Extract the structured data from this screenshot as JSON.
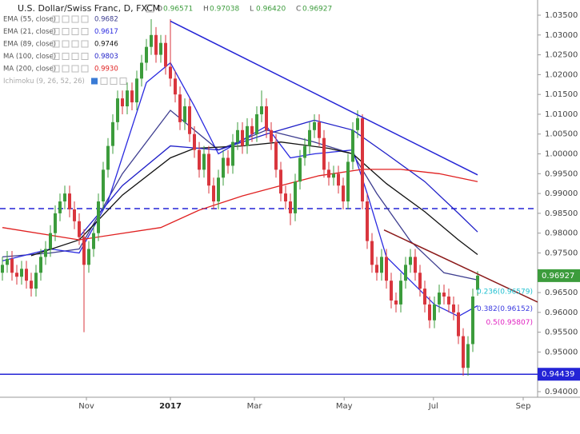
{
  "chart_data": {
    "type": "candlestick",
    "title": "U.S. Dollar/Swiss Franc, D, FXCM",
    "ohlc_text": [
      {
        "key": "O",
        "text": "0.96571"
      },
      {
        "key": "H",
        "text": "0.97038"
      },
      {
        "key": "L",
        "text": "0.96420"
      },
      {
        "key": "C",
        "text": "0.96927"
      }
    ],
    "up_color": "#3c9c3c",
    "down_color": "#d9363e",
    "xlim": [
      -0.5,
      111.5
    ],
    "xticks": [
      {
        "value": 17.5,
        "label": "Nov"
      },
      {
        "value": 35,
        "label": "2017"
      },
      {
        "value": 52.5,
        "label": "Mar"
      },
      {
        "value": 71.2,
        "label": "May"
      },
      {
        "value": 89.8,
        "label": "Jul"
      },
      {
        "value": 108.5,
        "label": "Sep"
      }
    ],
    "ylim": [
      0.94,
      1.035
    ],
    "yticks": [
      {
        "value": 1.035,
        "label": "1.03500"
      },
      {
        "value": 1.03,
        "label": "1.03000"
      },
      {
        "value": 1.025,
        "label": "1.02500"
      },
      {
        "value": 1.02,
        "label": "1.02000"
      },
      {
        "value": 1.015,
        "label": "1.01500"
      },
      {
        "value": 1.01,
        "label": "1.01000"
      },
      {
        "value": 1.005,
        "label": "1.00500"
      },
      {
        "value": 1.0,
        "label": "1.00000"
      },
      {
        "value": 0.995,
        "label": "0.99500"
      },
      {
        "value": 0.99,
        "label": "0.99000"
      },
      {
        "value": 0.985,
        "label": "0.98500"
      },
      {
        "value": 0.98,
        "label": "0.98000"
      },
      {
        "value": 0.975,
        "label": "0.97500"
      },
      {
        "value": 0.965,
        "label": "0.96500"
      },
      {
        "value": 0.96,
        "label": "0.96000"
      },
      {
        "value": 0.955,
        "label": "0.95500"
      },
      {
        "value": 0.95,
        "label": "0.95000"
      },
      {
        "value": 0.94,
        "label": "0.94000"
      }
    ],
    "x": [
      0,
      1,
      2,
      3,
      4,
      5,
      6,
      7,
      8,
      9,
      10,
      11,
      12,
      13,
      14,
      15,
      16,
      17,
      18,
      19,
      20,
      21,
      22,
      23,
      24,
      25,
      26,
      27,
      28,
      29,
      30,
      31,
      32,
      33,
      34,
      35,
      36,
      37,
      38,
      39,
      40,
      41,
      42,
      43,
      44,
      45,
      46,
      47,
      48,
      49,
      50,
      51,
      52,
      53,
      54,
      55,
      56,
      57,
      58,
      59,
      60,
      61,
      62,
      63,
      64,
      65,
      66,
      67,
      68,
      69,
      70,
      71,
      72,
      73,
      74,
      75,
      76,
      77,
      78,
      79,
      80,
      81,
      82,
      83,
      84,
      85,
      86,
      87,
      88,
      89,
      90,
      91,
      92,
      93,
      94,
      95,
      96,
      97,
      98,
      99
    ],
    "open": [
      0.97,
      0.972,
      0.9735,
      0.97,
      0.969,
      0.971,
      0.968,
      0.966,
      0.97,
      0.974,
      0.976,
      0.98,
      0.985,
      0.988,
      0.99,
      0.986,
      0.983,
      0.979,
      0.972,
      0.976,
      0.98,
      0.988,
      0.996,
      1.002,
      1.008,
      1.014,
      1.012,
      1.016,
      1.013,
      1.019,
      1.023,
      1.027,
      1.03,
      1.025,
      1.028,
      1.022,
      1.019,
      1.015,
      1.008,
      1.012,
      1.005,
      1.001,
      0.996,
      1.0,
      0.992,
      0.988,
      0.994,
      0.999,
      0.997,
      1.003,
      1.006,
      1.002,
      1.007,
      1.005,
      1.01,
      1.012,
      1.006,
      1.003,
      0.996,
      0.99,
      0.988,
      0.985,
      0.993,
      0.999,
      1.002,
      1.006,
      1.008,
      1.004,
      0.996,
      0.994,
      0.995,
      0.992,
      0.988,
      0.998,
      1.006,
      1.009,
      0.988,
      0.978,
      0.972,
      0.97,
      0.974,
      0.968,
      0.963,
      0.962,
      0.968,
      0.972,
      0.974,
      0.97,
      0.966,
      0.962,
      0.958,
      0.962,
      0.965,
      0.964,
      0.962,
      0.96,
      0.954,
      0.946,
      0.952,
      0.96571
    ],
    "high": [
      0.974,
      0.9755,
      0.9755,
      0.972,
      0.973,
      0.973,
      0.97,
      0.972,
      0.976,
      0.978,
      0.982,
      0.987,
      0.99,
      0.992,
      0.992,
      0.988,
      0.985,
      0.981,
      0.978,
      0.982,
      0.99,
      0.998,
      1.004,
      1.01,
      1.016,
      1.016,
      1.018,
      1.018,
      1.021,
      1.025,
      1.029,
      1.034,
      1.032,
      1.03,
      1.03,
      1.034,
      1.021,
      1.017,
      1.014,
      1.014,
      1.007,
      1.003,
      1.002,
      1.002,
      0.994,
      0.996,
      1.001,
      1.001,
      1.005,
      1.008,
      1.008,
      1.009,
      1.009,
      1.012,
      1.016,
      1.014,
      1.008,
      1.005,
      0.998,
      0.992,
      0.99,
      0.995,
      1.001,
      1.004,
      1.008,
      1.01,
      1.01,
      1.006,
      0.998,
      0.997,
      0.997,
      0.994,
      1.0,
      1.008,
      1.011,
      1.01,
      0.99,
      0.98,
      0.974,
      0.976,
      0.976,
      0.97,
      0.965,
      0.97,
      0.974,
      0.976,
      0.976,
      0.972,
      0.968,
      0.964,
      0.964,
      0.967,
      0.967,
      0.966,
      0.964,
      0.962,
      0.956,
      0.954,
      0.966,
      0.97038
    ],
    "low": [
      0.968,
      0.97,
      0.968,
      0.967,
      0.967,
      0.966,
      0.964,
      0.964,
      0.968,
      0.972,
      0.974,
      0.978,
      0.983,
      0.986,
      0.984,
      0.981,
      0.977,
      0.955,
      0.97,
      0.974,
      0.978,
      0.986,
      0.994,
      1.0,
      1.006,
      1.01,
      1.01,
      1.011,
      1.011,
      1.017,
      1.021,
      1.025,
      1.023,
      1.023,
      1.02,
      1.017,
      1.013,
      1.006,
      1.006,
      1.003,
      0.999,
      0.994,
      0.994,
      0.99,
      0.986,
      0.986,
      0.992,
      0.995,
      0.995,
      1.001,
      1.0,
      1.0,
      1.003,
      1.003,
      1.008,
      1.004,
      1.001,
      0.994,
      0.988,
      0.986,
      0.982,
      0.983,
      0.991,
      0.997,
      1.0,
      1.004,
      1.002,
      0.994,
      0.992,
      0.992,
      0.99,
      0.986,
      0.986,
      0.996,
      1.004,
      0.986,
      0.976,
      0.97,
      0.968,
      0.968,
      0.966,
      0.961,
      0.96,
      0.96,
      0.966,
      0.97,
      0.968,
      0.964,
      0.96,
      0.956,
      0.956,
      0.96,
      0.962,
      0.96,
      0.958,
      0.952,
      0.944,
      0.944,
      0.95,
      0.9642
    ],
    "close": [
      0.972,
      0.9735,
      0.97,
      0.969,
      0.971,
      0.968,
      0.966,
      0.97,
      0.974,
      0.976,
      0.98,
      0.985,
      0.988,
      0.99,
      0.986,
      0.983,
      0.979,
      0.972,
      0.976,
      0.98,
      0.988,
      0.996,
      1.002,
      1.008,
      1.014,
      1.012,
      1.016,
      1.013,
      1.019,
      1.023,
      1.027,
      1.03,
      1.025,
      1.028,
      1.022,
      1.019,
      1.015,
      1.008,
      1.012,
      1.005,
      1.001,
      0.996,
      1.0,
      0.992,
      0.988,
      0.994,
      0.999,
      0.997,
      1.003,
      1.006,
      1.002,
      1.007,
      1.005,
      1.01,
      1.012,
      1.006,
      1.003,
      0.996,
      0.99,
      0.988,
      0.985,
      0.993,
      0.999,
      1.002,
      1.006,
      1.008,
      1.004,
      0.996,
      0.994,
      0.995,
      0.992,
      0.988,
      0.998,
      1.006,
      1.009,
      0.988,
      0.978,
      0.972,
      0.97,
      0.974,
      0.968,
      0.963,
      0.962,
      0.968,
      0.972,
      0.974,
      0.97,
      0.966,
      0.962,
      0.958,
      0.962,
      0.965,
      0.964,
      0.962,
      0.96,
      0.954,
      0.946,
      0.952,
      0.964,
      0.96927
    ],
    "indicators": [
      {
        "name": "EMA (55, close)",
        "legend_value": "0.9682",
        "color": "#3d3d8f",
        "x": [
          0,
          10,
          16,
          25,
          35,
          45,
          55,
          65,
          73,
          78,
          85,
          92,
          99
        ],
        "values": [
          0.974,
          0.975,
          0.976,
          0.995,
          1.011,
          1.001,
          1.006,
          1.003,
          1.0,
          0.99,
          0.978,
          0.97,
          0.9682
        ]
      },
      {
        "name": "EMA (21, close)",
        "legend_value": "0.9617",
        "color": "#2a2ae0",
        "x": [
          0,
          10,
          16,
          22,
          30,
          35,
          40,
          45,
          55,
          60,
          65,
          73,
          76,
          80,
          85,
          90,
          95,
          99
        ],
        "values": [
          0.973,
          0.976,
          0.975,
          0.988,
          1.018,
          1.023,
          1.012,
          1.0,
          1.007,
          0.999,
          1.0,
          1.001,
          0.99,
          0.974,
          0.968,
          0.962,
          0.959,
          0.9617
        ]
      },
      {
        "name": "EMA (89, close)",
        "legend_value": "0.9746",
        "color": "#111111",
        "x": [
          6,
          16,
          25,
          35,
          40,
          50,
          58,
          68,
          73,
          80,
          88,
          95,
          99
        ],
        "values": [
          0.9743,
          0.9783,
          0.9896,
          0.999,
          1.0014,
          1.002,
          1.003,
          1.0014,
          1.0,
          0.9925,
          0.9854,
          0.9783,
          0.9746
        ]
      },
      {
        "name": "MA (100, close)",
        "legend_value": "0.9803",
        "color": "#1f1fc8",
        "x": [
          16,
          25,
          35,
          45,
          55,
          65,
          73,
          80,
          88,
          95,
          99
        ],
        "values": [
          0.979,
          0.992,
          1.002,
          1.001,
          1.005,
          1.0085,
          1.006,
          1.0,
          0.993,
          0.985,
          0.9803
        ]
      },
      {
        "name": "MA (200, close)",
        "legend_value": "0.9930",
        "color": "#e02020",
        "x": [
          0,
          16,
          33,
          41,
          50,
          58,
          66,
          75,
          83,
          91,
          99
        ],
        "values": [
          0.9814,
          0.9783,
          0.9814,
          0.9858,
          0.9894,
          0.992,
          0.9945,
          0.9961,
          0.9961,
          0.995,
          0.993
        ]
      }
    ],
    "extra_indicator": "Ichimoku (9, 26, 52, 26)",
    "trendlines": [
      {
        "color": "#2424d6",
        "x": [
          35,
          99
        ],
        "values": [
          1.0335,
          0.9947
        ]
      },
      {
        "color": "#8b1a1a",
        "x": [
          79.5,
          111.5
        ],
        "values": [
          0.9808,
          0.9626
        ]
      }
    ],
    "hlines": [
      {
        "value": 0.9862,
        "color": "#2424d6",
        "dashed": true
      },
      {
        "value": 0.94439,
        "color": "#2424d6",
        "dashed": false
      }
    ],
    "price_labels": [
      {
        "value": 0.96927,
        "label": "0.96927",
        "color": "#3c9c3c"
      },
      {
        "value": 0.94439,
        "label": "0.94439",
        "color": "#2424d6"
      }
    ],
    "annotations": [
      {
        "text": "0.236(0.96579)",
        "value": 0.96579,
        "color": "#20c0d0"
      },
      {
        "text": "0.382(0.96152)",
        "value": 0.9615,
        "color": "#3a3ae0"
      },
      {
        "text": "0.5(0.95807)",
        "value": 0.95807,
        "color": "#e020c0"
      }
    ]
  }
}
